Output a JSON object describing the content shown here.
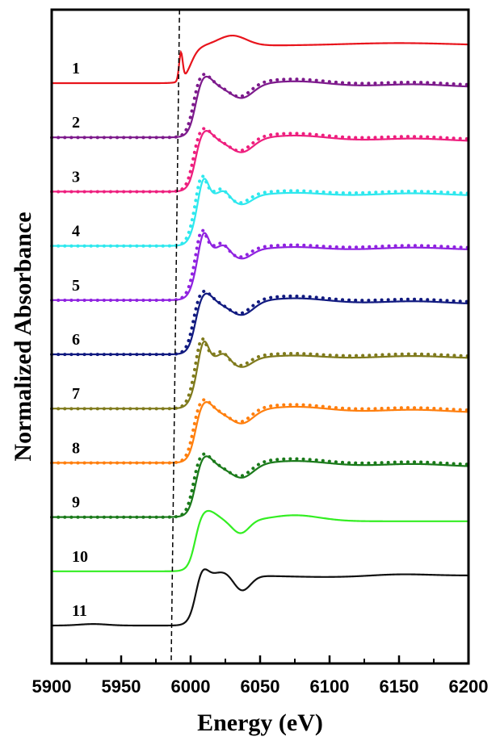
{
  "chart_data": {
    "type": "line",
    "title": "",
    "xlabel": "Energy (eV)",
    "ylabel": "Normalized Absorbance",
    "xlim": [
      5900,
      6200
    ],
    "xticks": [
      5900,
      5950,
      6000,
      6050,
      6100,
      6150,
      6200
    ],
    "xtick_labels": [
      "5900",
      "5950",
      "6000",
      "6050",
      "6100",
      "6150",
      "6200"
    ],
    "y_ticks_shown": false,
    "grid": false,
    "legend": "none",
    "reference_line": {
      "x": 5989,
      "style": "dashed",
      "color": "#000000"
    },
    "series": [
      {
        "label": "1",
        "color": "#e8141c",
        "offset": 11,
        "solid": "pre-edge-peak",
        "dotted": false
      },
      {
        "label": "2",
        "color": "#7d1a8c",
        "offset": 10,
        "solid": "edge-a",
        "dotted": true
      },
      {
        "label": "3",
        "color": "#ee1f7e",
        "offset": 9,
        "solid": "edge-a",
        "dotted": true
      },
      {
        "label": "4",
        "color": "#2ee8ee",
        "offset": 8,
        "solid": "edge-b",
        "dotted": true
      },
      {
        "label": "5",
        "color": "#8f22e0",
        "offset": 7,
        "solid": "edge-b",
        "dotted": true
      },
      {
        "label": "6",
        "color": "#111a80",
        "offset": 6,
        "solid": "edge-a",
        "dotted": true
      },
      {
        "label": "7",
        "color": "#7f7a1c",
        "offset": 5,
        "solid": "edge-b",
        "dotted": true
      },
      {
        "label": "8",
        "color": "#ff7f0e",
        "offset": 4,
        "solid": "edge-a",
        "dotted": true
      },
      {
        "label": "9",
        "color": "#1a7a1a",
        "offset": 3,
        "solid": "edge-a",
        "dotted": true
      },
      {
        "label": "10",
        "color": "#33ee22",
        "offset": 2,
        "solid": "edge-c",
        "dotted": false
      },
      {
        "label": "11",
        "color": "#111111",
        "offset": 1,
        "solid": "edge-d",
        "dotted": false
      }
    ]
  }
}
